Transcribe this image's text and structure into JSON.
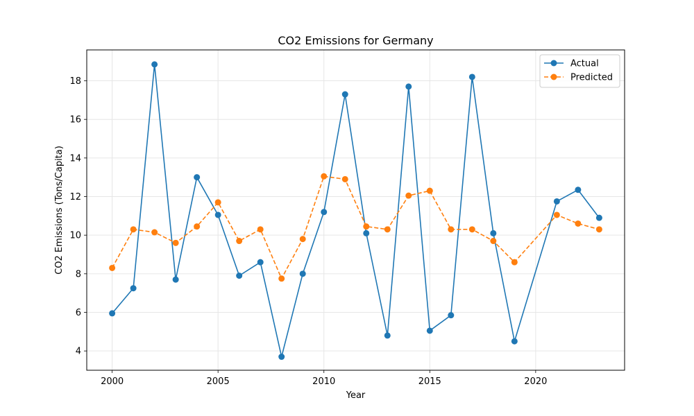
{
  "chart_data": {
    "type": "line",
    "title": "CO2 Emissions for Germany",
    "xlabel": "Year",
    "ylabel": "CO2 Emissions (Tons/Capita)",
    "xlim": [
      1998.8,
      2024.2
    ],
    "ylim": [
      3.0,
      19.6
    ],
    "xticks": [
      2000,
      2005,
      2010,
      2015,
      2020
    ],
    "yticks": [
      4,
      6,
      8,
      10,
      12,
      14,
      16,
      18
    ],
    "grid": true,
    "legend_position": "top-right",
    "series": [
      {
        "name": "Actual",
        "color": "#1f77b4",
        "line_style": "solid",
        "marker": "circle",
        "x": [
          2000,
          2001,
          2002,
          2003,
          2004,
          2005,
          2006,
          2007,
          2008,
          2009,
          2010,
          2011,
          2012,
          2013,
          2014,
          2015,
          2016,
          2017,
          2018,
          2019,
          2021,
          2022,
          2023
        ],
        "y": [
          5.95,
          7.25,
          18.85,
          7.7,
          13.0,
          11.05,
          7.9,
          8.6,
          3.7,
          8.0,
          11.2,
          17.3,
          10.1,
          4.8,
          17.7,
          5.05,
          5.85,
          18.2,
          10.1,
          4.5,
          11.75,
          12.35,
          10.9
        ]
      },
      {
        "name": "Predicted",
        "color": "#ff7f0e",
        "line_style": "dashed",
        "marker": "circle",
        "x": [
          2000,
          2001,
          2002,
          2003,
          2004,
          2005,
          2006,
          2007,
          2008,
          2009,
          2010,
          2011,
          2012,
          2013,
          2014,
          2015,
          2016,
          2017,
          2018,
          2019,
          2021,
          2022,
          2023
        ],
        "y": [
          8.3,
          10.3,
          10.15,
          9.6,
          10.45,
          11.7,
          9.7,
          10.3,
          7.75,
          9.8,
          13.05,
          12.9,
          10.45,
          10.3,
          12.05,
          12.3,
          10.3,
          10.3,
          9.7,
          8.6,
          11.05,
          10.6,
          10.3
        ]
      }
    ]
  }
}
